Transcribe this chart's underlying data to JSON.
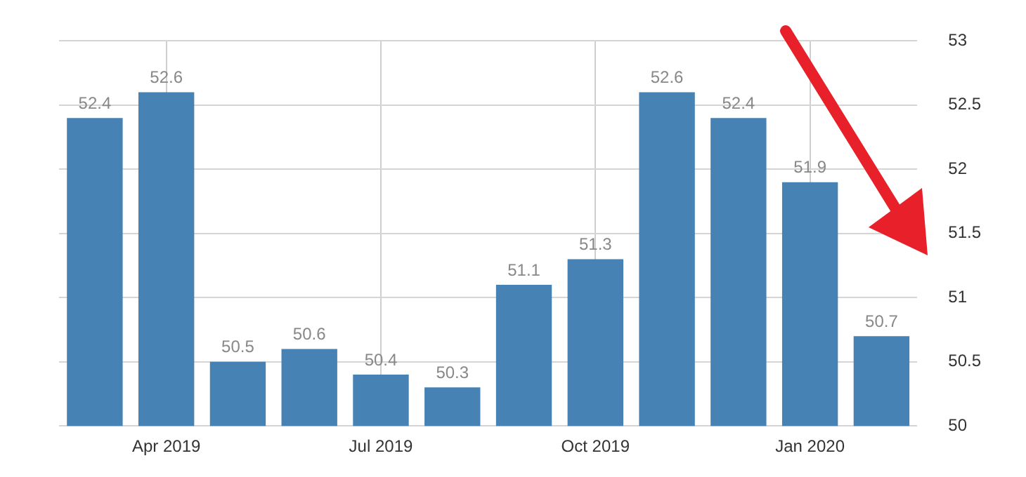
{
  "chart_data": {
    "type": "bar",
    "categories": [
      null,
      "Apr 2019",
      null,
      null,
      "Jul 2019",
      null,
      null,
      "Oct 2019",
      null,
      null,
      "Jan 2020",
      null
    ],
    "values": [
      52.4,
      52.6,
      50.5,
      50.6,
      50.4,
      50.3,
      51.1,
      51.3,
      52.6,
      52.4,
      51.9,
      50.7
    ],
    "color": "#4682b4",
    "ylim": [
      50,
      53
    ],
    "yticks": [
      50,
      50.5,
      51,
      51.5,
      52,
      52.5,
      53
    ],
    "grid": true,
    "data_labels": true
  }
}
